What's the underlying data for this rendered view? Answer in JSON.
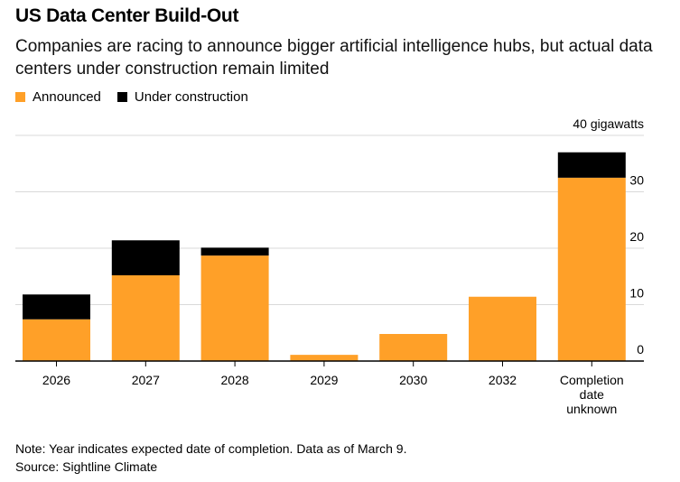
{
  "chart_data": {
    "type": "bar",
    "stacked": true,
    "title": "US Data Center Build-Out",
    "subtitle": "Companies are racing to announce bigger artificial intelligence hubs, but actual data centers under construction remain limited",
    "categories": [
      "2026",
      "2027",
      "2028",
      "2029",
      "2030",
      "2032",
      "Completion date unknown"
    ],
    "series": [
      {
        "name": "Announced",
        "color": "#FFA028",
        "values": [
          7.4,
          15.2,
          18.7,
          1.1,
          4.8,
          11.4,
          32.5
        ]
      },
      {
        "name": "Under construction",
        "color": "#000000",
        "values": [
          4.4,
          6.2,
          1.4,
          0,
          0,
          0,
          4.5
        ]
      }
    ],
    "ylim": [
      0,
      40
    ],
    "yticks": [
      0,
      10,
      20,
      30,
      40
    ],
    "ytick_labels": [
      "0",
      "10",
      "20",
      "30",
      "40 gigawatts"
    ],
    "yaxis_position": "right",
    "grid": true,
    "legend_position": "top-left",
    "note": "Note: Year indicates expected date of completion. Data as of March 9.",
    "source": "Source: Sightline Climate"
  }
}
